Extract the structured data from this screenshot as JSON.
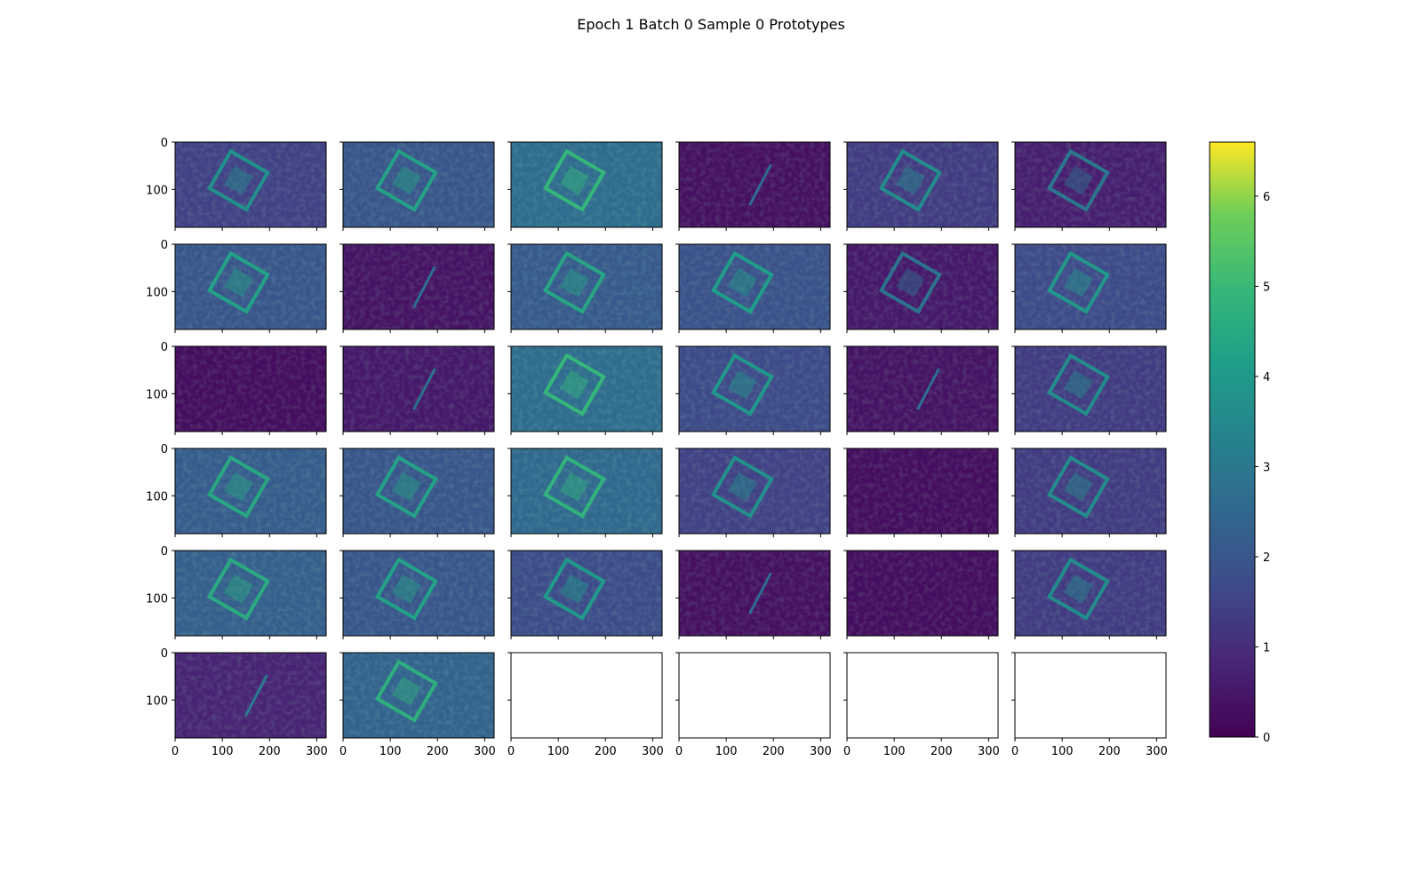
{
  "figure": {
    "title": "Epoch 1 Batch 0 Sample 0 Prototypes"
  },
  "chart_data": {
    "type": "heatmap",
    "title": "Epoch 1 Batch 0 Sample 0 Prototypes",
    "grid": {
      "rows": 6,
      "cols": 6
    },
    "panel_count": 32,
    "empty_panel_count": 4,
    "image_extent": {
      "x": [
        0,
        320
      ],
      "y": [
        0,
        180
      ]
    },
    "x_ticks": [
      0,
      100,
      200,
      300
    ],
    "y_ticks": [
      0,
      100
    ],
    "colormap": "viridis",
    "colorbar": {
      "min": 0,
      "max": 6.6,
      "ticks": [
        0,
        1,
        2,
        3,
        4,
        5,
        6
      ]
    },
    "panels": [
      {
        "index": 0,
        "brightness": 0.22,
        "feature": "square"
      },
      {
        "index": 1,
        "brightness": 0.3,
        "feature": "square"
      },
      {
        "index": 2,
        "brightness": 0.4,
        "feature": "square"
      },
      {
        "index": 3,
        "brightness": 0.05,
        "feature": "line"
      },
      {
        "index": 4,
        "brightness": 0.2,
        "feature": "square"
      },
      {
        "index": 5,
        "brightness": 0.1,
        "feature": "square"
      },
      {
        "index": 6,
        "brightness": 0.3,
        "feature": "square"
      },
      {
        "index": 7,
        "brightness": 0.06,
        "feature": "line"
      },
      {
        "index": 8,
        "brightness": 0.32,
        "feature": "square"
      },
      {
        "index": 9,
        "brightness": 0.28,
        "feature": "square"
      },
      {
        "index": 10,
        "brightness": 0.08,
        "feature": "square"
      },
      {
        "index": 11,
        "brightness": 0.25,
        "feature": "square"
      },
      {
        "index": 12,
        "brightness": 0.04,
        "feature": "none"
      },
      {
        "index": 13,
        "brightness": 0.08,
        "feature": "line"
      },
      {
        "index": 14,
        "brightness": 0.4,
        "feature": "square"
      },
      {
        "index": 15,
        "brightness": 0.25,
        "feature": "square"
      },
      {
        "index": 16,
        "brightness": 0.06,
        "feature": "line"
      },
      {
        "index": 17,
        "brightness": 0.2,
        "feature": "square"
      },
      {
        "index": 18,
        "brightness": 0.33,
        "feature": "square"
      },
      {
        "index": 19,
        "brightness": 0.3,
        "feature": "square"
      },
      {
        "index": 20,
        "brightness": 0.38,
        "feature": "square"
      },
      {
        "index": 21,
        "brightness": 0.22,
        "feature": "square"
      },
      {
        "index": 22,
        "brightness": 0.04,
        "feature": "none"
      },
      {
        "index": 23,
        "brightness": 0.2,
        "feature": "square"
      },
      {
        "index": 24,
        "brightness": 0.34,
        "feature": "square"
      },
      {
        "index": 25,
        "brightness": 0.3,
        "feature": "square"
      },
      {
        "index": 26,
        "brightness": 0.26,
        "feature": "square"
      },
      {
        "index": 27,
        "brightness": 0.05,
        "feature": "line"
      },
      {
        "index": 28,
        "brightness": 0.04,
        "feature": "none"
      },
      {
        "index": 29,
        "brightness": 0.2,
        "feature": "square"
      },
      {
        "index": 30,
        "brightness": 0.12,
        "feature": "line"
      },
      {
        "index": 31,
        "brightness": 0.36,
        "feature": "square"
      }
    ]
  }
}
